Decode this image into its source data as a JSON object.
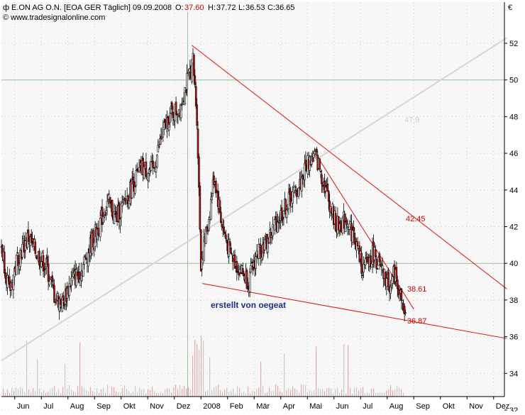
{
  "header": {
    "title": "E.ON AG O.N. [EOA GER  Täglich] 09.09.2008",
    "o_label": "O:",
    "o_value": "37.60",
    "h_label": "H:",
    "h_value": "37.72",
    "l_label": "L:",
    "l_value": "36.53",
    "c_label": "C:",
    "c_value": "36.65",
    "source": "© www.tradesignalonline.com"
  },
  "currency_symbol": "€",
  "credit": "erstellt von oegeat",
  "chart_data": {
    "type": "candlestick",
    "title": "E.ON AG O.N. [EOA GER  Täglich] 09.09.2008",
    "ylim": [
      31,
      53
    ],
    "y_ticks": [
      "32",
      "34",
      "36",
      "38",
      "40",
      "42",
      "44",
      "46",
      "48",
      "50",
      "52"
    ],
    "x_ticks": [
      "Jun",
      "Jul",
      "Aug",
      "Sep",
      "Okt",
      "Nov",
      "Dez",
      "2008",
      "Feb",
      "Mär",
      "Apr",
      "Mai",
      "Jun",
      "Jul",
      "Aug",
      "Sep",
      "Okt",
      "Nov",
      "Dez"
    ],
    "xlim": [
      0,
      19
    ],
    "grid": true,
    "price_path": [
      [
        0.0,
        41.0
      ],
      [
        0.3,
        38.4
      ],
      [
        0.6,
        40.3
      ],
      [
        1.0,
        41.4
      ],
      [
        1.3,
        40.6
      ],
      [
        1.7,
        39.8
      ],
      [
        2.0,
        38.2
      ],
      [
        2.3,
        37.8
      ],
      [
        2.6,
        39.0
      ],
      [
        3.0,
        39.6
      ],
      [
        3.3,
        40.8
      ],
      [
        3.7,
        42.2
      ],
      [
        4.0,
        43.4
      ],
      [
        4.3,
        42.4
      ],
      [
        4.7,
        43.5
      ],
      [
        5.0,
        44.5
      ],
      [
        5.3,
        45.2
      ],
      [
        5.7,
        45.0
      ],
      [
        6.0,
        46.8
      ],
      [
        6.3,
        48.0
      ],
      [
        6.7,
        48.5
      ],
      [
        7.0,
        50.0
      ],
      [
        7.2,
        51.0
      ],
      [
        7.35,
        48.0
      ],
      [
        7.5,
        40.0
      ],
      [
        7.8,
        42.5
      ],
      [
        8.0,
        44.8
      ],
      [
        8.3,
        42.0
      ],
      [
        8.6,
        40.5
      ],
      [
        9.0,
        39.6
      ],
      [
        9.3,
        39.0
      ],
      [
        9.6,
        40.5
      ],
      [
        10.0,
        41.2
      ],
      [
        10.4,
        42.4
      ],
      [
        10.8,
        43.4
      ],
      [
        11.2,
        44.2
      ],
      [
        11.5,
        45.5
      ],
      [
        11.8,
        45.9
      ],
      [
        12.0,
        45.0
      ],
      [
        12.3,
        43.5
      ],
      [
        12.6,
        42.0
      ],
      [
        13.0,
        42.4
      ],
      [
        13.3,
        41.2
      ],
      [
        13.6,
        39.6
      ],
      [
        14.0,
        40.6
      ],
      [
        14.3,
        39.4
      ],
      [
        14.6,
        38.8
      ],
      [
        14.8,
        39.5
      ],
      [
        15.0,
        38.2
      ],
      [
        15.2,
        36.9
      ]
    ],
    "volume_scale": [
      0,
      1
    ],
    "annotations": [
      {
        "text": "47.9",
        "color": "#cfcfcf",
        "x": 15.15,
        "y": 47.85
      },
      {
        "text": "42.45",
        "color": "#d00000",
        "x": 15.2,
        "y": 42.45
      },
      {
        "text": "38.61",
        "color": "#d00000",
        "x": 15.25,
        "y": 38.61
      },
      {
        "text": "36.87",
        "color": "#d00000",
        "x": 15.25,
        "y": 36.87
      }
    ],
    "horizontal_lines": [
      50,
      40
    ],
    "vertical_lines": [
      7.0
    ]
  },
  "colors": {
    "plot_bg": "#f7f7f7",
    "grid": "#c8c8c8",
    "trend_red": "#e01010",
    "trend_grey": "#d6d6d6",
    "candle_up": "#ffffff",
    "candle_down": "#c81010",
    "candle_outline": "#000000",
    "hline": "#9ac29a"
  }
}
